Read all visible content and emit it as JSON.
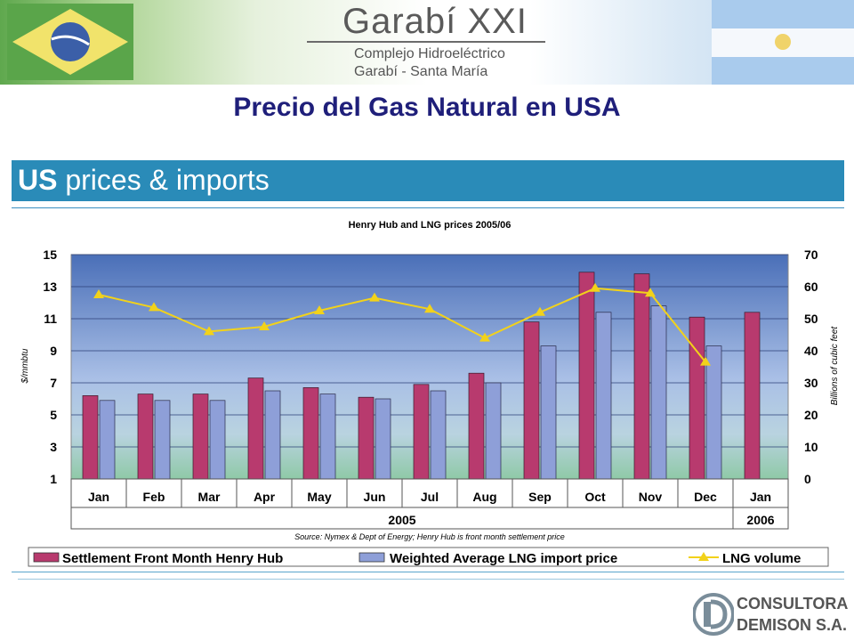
{
  "header": {
    "logo_title": "Garabí XXI",
    "logo_sub1": "Complejo Hidroeléctrico",
    "logo_sub2": "Garabí - Santa María",
    "slide_title": "Precio del Gas Natural en USA"
  },
  "section_bar": {
    "bold": "US",
    "rest": " prices & imports"
  },
  "footer_logo": {
    "line1": "CONSULTORA",
    "line2": "DEMISON S.A."
  },
  "colors": {
    "henry": "#b83a6e",
    "lng_price": "#8e9fd8",
    "lng_volume": "#f2d21a",
    "plot_top": "#4a6fb8",
    "plot_bottom": "#8fc9a7"
  },
  "chart_data": {
    "type": "bar",
    "title": "Henry Hub and LNG prices 2005/06",
    "source": "Source: Nymex & Dept of Energy; Henry Hub is front month settlement price",
    "categories": [
      "Jan",
      "Feb",
      "Mar",
      "Apr",
      "May",
      "Jun",
      "Jul",
      "Aug",
      "Sep",
      "Oct",
      "Nov",
      "Dec",
      "Jan"
    ],
    "year_groups": [
      {
        "label": "2005",
        "from": 0,
        "to": 11
      },
      {
        "label": "2006",
        "from": 12,
        "to": 12
      }
    ],
    "ylabel": "$/mmbtu",
    "ylabel_right": "Billions of cubic feet",
    "ylim": [
      1,
      15
    ],
    "yticks": [
      "1",
      "3",
      "5",
      "7",
      "9",
      "11",
      "13",
      "15"
    ],
    "ylim_right": [
      0,
      70
    ],
    "yticks_right": [
      "0",
      "10",
      "20",
      "30",
      "40",
      "50",
      "60",
      "70"
    ],
    "series": [
      {
        "name": "Settlement Front Month Henry Hub",
        "kind": "bar",
        "axis": "left",
        "values": [
          6.2,
          6.3,
          6.3,
          7.3,
          6.7,
          6.1,
          6.9,
          7.6,
          10.8,
          13.9,
          13.8,
          11.1,
          11.4
        ]
      },
      {
        "name": "Weighted Average LNG import price",
        "kind": "bar",
        "axis": "left",
        "values": [
          5.9,
          5.9,
          5.9,
          6.5,
          6.3,
          6.0,
          6.5,
          7.0,
          9.3,
          11.4,
          11.8,
          9.3,
          null
        ]
      },
      {
        "name": "LNG volume",
        "kind": "line",
        "axis": "right",
        "values": [
          57.5,
          53.5,
          46,
          47.5,
          52.5,
          56.5,
          53,
          44,
          52,
          59.5,
          58,
          36.5,
          null
        ]
      }
    ]
  }
}
